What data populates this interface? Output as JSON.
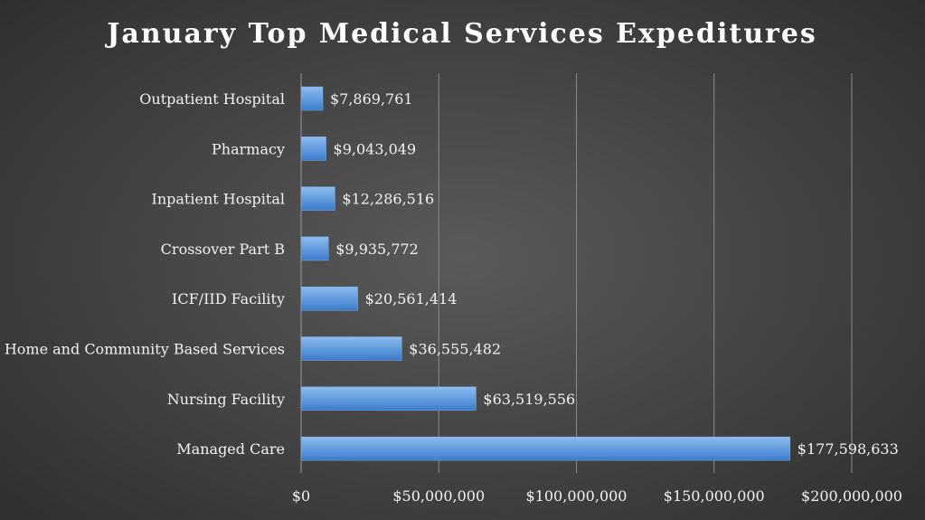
{
  "chart_data": {
    "type": "bar",
    "orientation": "horizontal",
    "title": "January Top Medical Services Expeditures",
    "xlabel": "",
    "ylabel": "",
    "categories": [
      "Outpatient Hospital",
      "Pharmacy",
      "Inpatient Hospital",
      "Crossover Part B",
      "ICF/IID Facility",
      "Home and Community Based Services",
      "Nursing Facility",
      "Managed Care"
    ],
    "values": [
      7869761,
      9043049,
      12286516,
      9935772,
      20561414,
      36555482,
      63519556,
      177598633
    ],
    "data_labels": [
      "$7,869,761",
      "$9,043,049",
      "$12,286,516",
      "$9,935,772",
      "$20,561,414",
      "$36,555,482",
      "$63,519,556",
      "$177,598,633"
    ],
    "xlim": [
      0,
      200000000
    ],
    "ticks": [
      0,
      50000000,
      100000000,
      150000000,
      200000000
    ],
    "tick_labels": [
      "$0",
      "$50,000,000",
      "$100,000,000",
      "$150,000,000",
      "$200,000,000"
    ],
    "grid": "vertical",
    "legend": "none",
    "colors": {
      "bar_top": "#8dbcf0",
      "bar_bottom": "#3a7ccc",
      "title": "#ffffff",
      "text": "#f2f2f2",
      "grid": "#8a8a8a"
    }
  }
}
